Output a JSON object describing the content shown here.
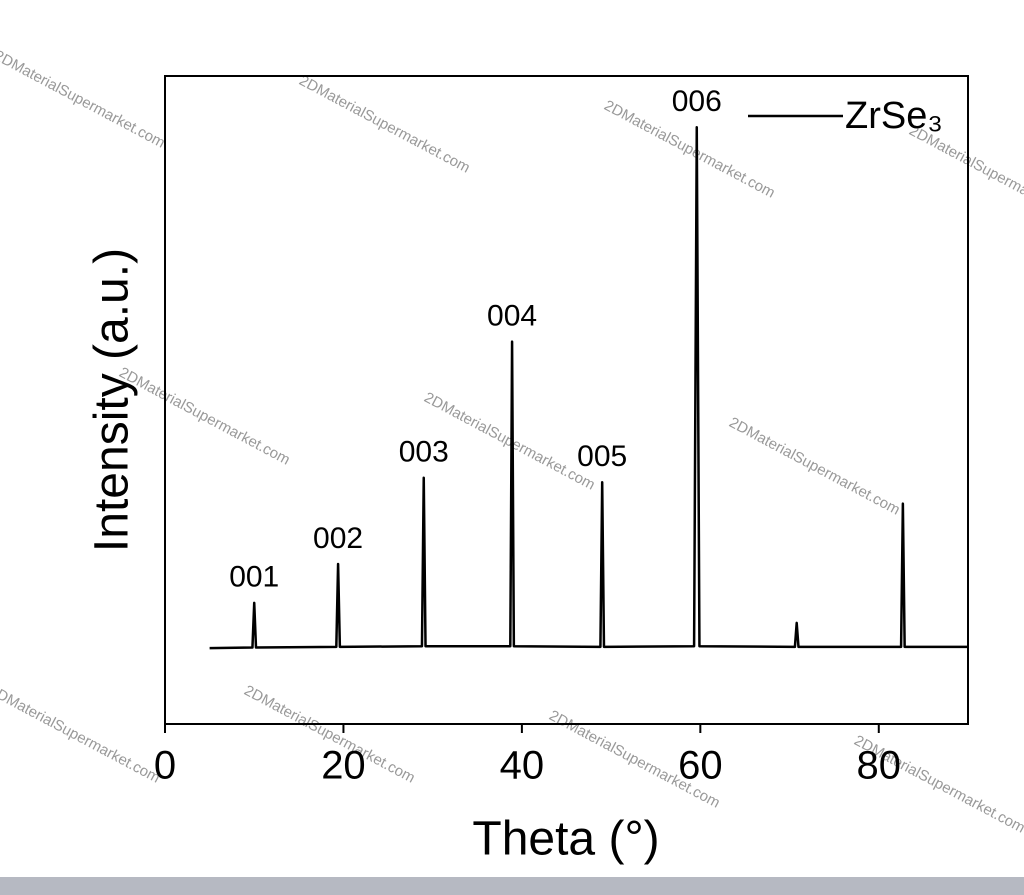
{
  "chart_data": {
    "type": "line",
    "x_label": "Theta (°)",
    "y_label": "Intensity (a.u.)",
    "watermark": "2DMaterialSupermarket.com",
    "peak_labels": [
      "001",
      "002",
      "003",
      "004",
      "005",
      "006"
    ],
    "x": [
      5,
      9.8,
      10.0,
      10.2,
      19.2,
      19.4,
      19.6,
      28.8,
      29.0,
      29.2,
      38.7,
      38.9,
      39.1,
      48.8,
      49.0,
      49.2,
      59.3,
      59.6,
      59.9,
      70.6,
      70.8,
      71.0,
      82.5,
      82.7,
      82.9,
      90
    ],
    "series": [
      {
        "name": "ZrSe₃",
        "color": "#000000",
        "values": [
          11.7,
          11.8,
          18.7,
          11.8,
          11.9,
          24.7,
          11.9,
          12.0,
          38.0,
          12.0,
          12.0,
          59.0,
          12.0,
          11.9,
          37.3,
          11.9,
          12.0,
          92.1,
          12.0,
          11.9,
          15.6,
          11.9,
          11.9,
          34.0,
          11.9,
          11.9
        ]
      }
    ],
    "xlim": [
      0,
      90
    ],
    "xticks": [
      0,
      20,
      40,
      60,
      80
    ],
    "ylim": [
      0,
      100
    ],
    "legend": "upper right"
  }
}
